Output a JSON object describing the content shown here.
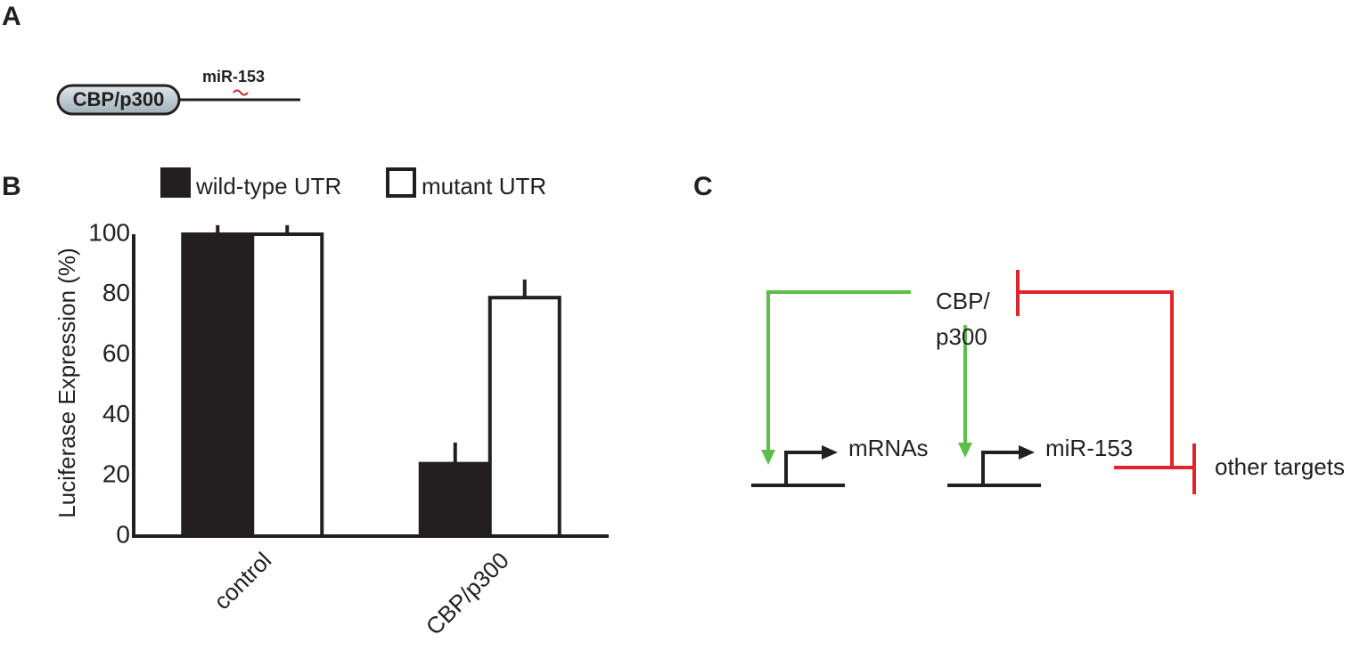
{
  "panel_a": {
    "label": "A",
    "gene": "CBP/p300",
    "mirna": "miR-153"
  },
  "chart_data": {
    "type": "bar",
    "panel_label": "B",
    "ylabel": "Luciferase Expression (%)",
    "categories": [
      "control",
      "CBP/p300"
    ],
    "series": [
      {
        "name": "wild-type UTR",
        "color": "#231f20",
        "values": [
          100,
          24
        ],
        "errors": [
          3,
          7
        ]
      },
      {
        "name": "mutant UTR",
        "color": "#ffffff",
        "values": [
          100,
          79
        ],
        "errors": [
          3,
          6
        ]
      }
    ],
    "ylim": [
      0,
      100
    ],
    "yticks": [
      0,
      20,
      40,
      60,
      80,
      100
    ],
    "grid": false,
    "legend": "top"
  },
  "panel_c": {
    "label": "C",
    "regulator": [
      "CBP/",
      "p300"
    ],
    "targets": [
      "mRNAs",
      "miR-153",
      "other targets"
    ]
  }
}
